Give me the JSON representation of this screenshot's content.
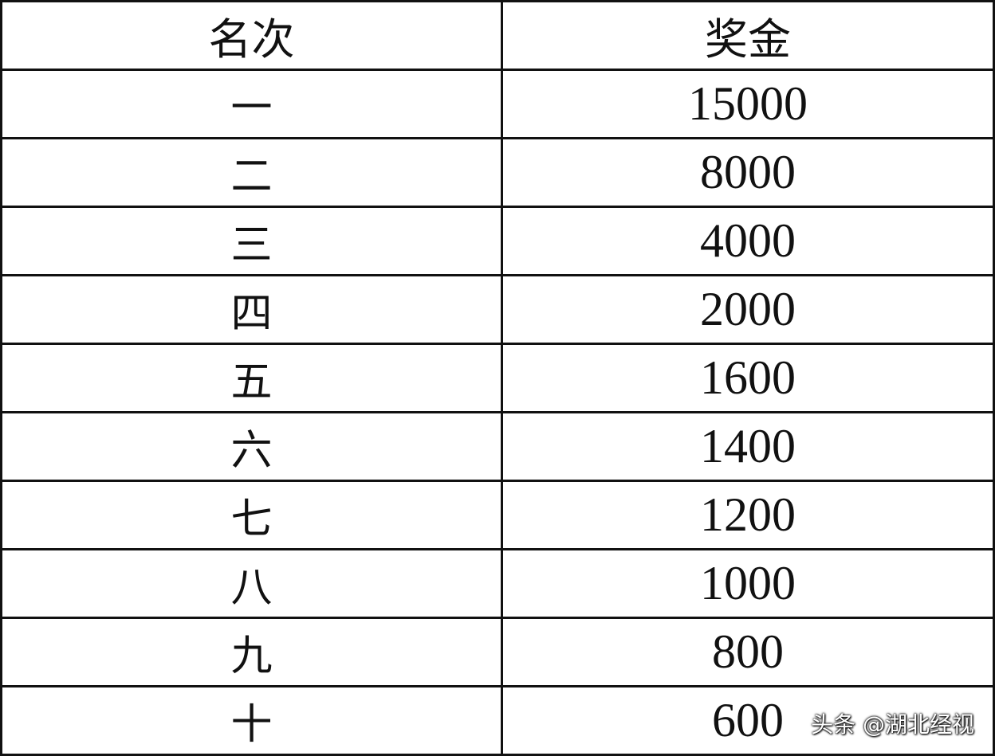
{
  "table": {
    "headers": [
      "名次",
      "奖金"
    ],
    "rows": [
      {
        "rank": "一",
        "prize": "15000"
      },
      {
        "rank": "二",
        "prize": "8000"
      },
      {
        "rank": "三",
        "prize": "4000"
      },
      {
        "rank": "四",
        "prize": "2000"
      },
      {
        "rank": "五",
        "prize": "1600"
      },
      {
        "rank": "六",
        "prize": "1400"
      },
      {
        "rank": "七",
        "prize": "1200"
      },
      {
        "rank": "八",
        "prize": "1000"
      },
      {
        "rank": "九",
        "prize": "800"
      },
      {
        "rank": "十",
        "prize": "600"
      }
    ]
  },
  "watermark": "头条 @湖北经视"
}
